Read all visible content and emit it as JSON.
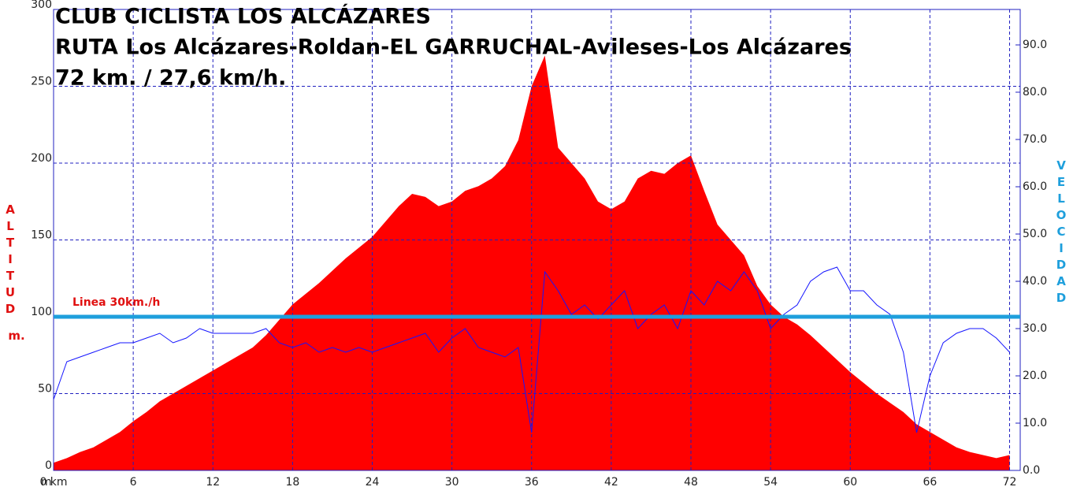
{
  "chart_data": {
    "type": "area",
    "title_lines": [
      "CLUB CICLISTA LOS ALCÁZARES",
      "RUTA Los Alcázares-Roldan-EL GARRUCHAL-Avileses-Los Alcázares",
      "72 km. / 27,6 km/h."
    ],
    "y_label": "ALTITUD",
    "y_unit": "m.",
    "y2_label": "VELOCIDAD",
    "origin_label": "m",
    "x": [
      0,
      1,
      2,
      3,
      4,
      5,
      6,
      7,
      8,
      9,
      10,
      11,
      12,
      13,
      14,
      15,
      16,
      17,
      18,
      19,
      20,
      21,
      22,
      23,
      24,
      25,
      26,
      27,
      28,
      29,
      30,
      31,
      32,
      33,
      34,
      35,
      36,
      37,
      38,
      39,
      40,
      41,
      42,
      43,
      44,
      45,
      46,
      47,
      48,
      49,
      50,
      51,
      52,
      53,
      54,
      55,
      56,
      57,
      58,
      59,
      60,
      61,
      62,
      63,
      64,
      65,
      66,
      67,
      68,
      69,
      70,
      71,
      72
    ],
    "series": [
      {
        "name": "Altitud",
        "type": "area",
        "color": "#ff0000",
        "values": [
          5,
          8,
          12,
          15,
          20,
          25,
          32,
          38,
          45,
          50,
          55,
          60,
          65,
          70,
          75,
          80,
          88,
          98,
          108,
          115,
          122,
          130,
          138,
          145,
          152,
          162,
          172,
          180,
          178,
          172,
          175,
          182,
          185,
          190,
          198,
          215,
          250,
          270,
          210,
          200,
          190,
          175,
          170,
          175,
          190,
          195,
          193,
          200,
          205,
          182,
          160,
          150,
          140,
          120,
          108,
          100,
          95,
          88,
          80,
          72,
          64,
          57,
          50,
          44,
          38,
          30,
          25,
          20,
          15,
          12,
          10,
          8,
          10
        ]
      },
      {
        "name": "Velocidad",
        "type": "line",
        "axis": "y2",
        "color": "#1414ff",
        "values": [
          15,
          23,
          24,
          25,
          26,
          27,
          27,
          28,
          29,
          27,
          28,
          30,
          29,
          29,
          29,
          29,
          30,
          27,
          26,
          27,
          25,
          26,
          25,
          26,
          25,
          26,
          27,
          28,
          29,
          25,
          28,
          30,
          26,
          25,
          24,
          26,
          8,
          42,
          38,
          33,
          35,
          32,
          35,
          38,
          30,
          33,
          35,
          30,
          38,
          35,
          40,
          38,
          42,
          38,
          30,
          33,
          35,
          40,
          42,
          43,
          38,
          38,
          35,
          33,
          25,
          8,
          20,
          27,
          29,
          30,
          30,
          28,
          25
        ]
      }
    ],
    "reference_line": {
      "label": "Linea 30km./h",
      "value": 100,
      "color": "#1e9fdc"
    },
    "xlim": [
      0,
      72.8
    ],
    "xticks": [
      {
        "value": 0,
        "label": "0 km"
      },
      6,
      12,
      18,
      24,
      30,
      36,
      42,
      48,
      54,
      60,
      66,
      72
    ],
    "ylim": [
      0,
      300
    ],
    "yticks": [
      0,
      50,
      100,
      150,
      200,
      250,
      300
    ],
    "y2lim": [
      0,
      97.5
    ],
    "y2ticks": [
      {
        "value": 0,
        "label": "0.0"
      },
      {
        "value": 10,
        "label": "10.0"
      },
      {
        "value": 20,
        "label": "20.0"
      },
      {
        "value": 30,
        "label": "30.0"
      },
      {
        "value": 40,
        "label": "40.0"
      },
      {
        "value": 50,
        "label": "50.0"
      },
      {
        "value": 60,
        "label": "60.0"
      },
      {
        "value": 70,
        "label": "70.0"
      },
      {
        "value": 80,
        "label": "80.0"
      },
      {
        "value": 90,
        "label": "90.0"
      }
    ],
    "grid": true,
    "grid_color": "#2020c0"
  }
}
